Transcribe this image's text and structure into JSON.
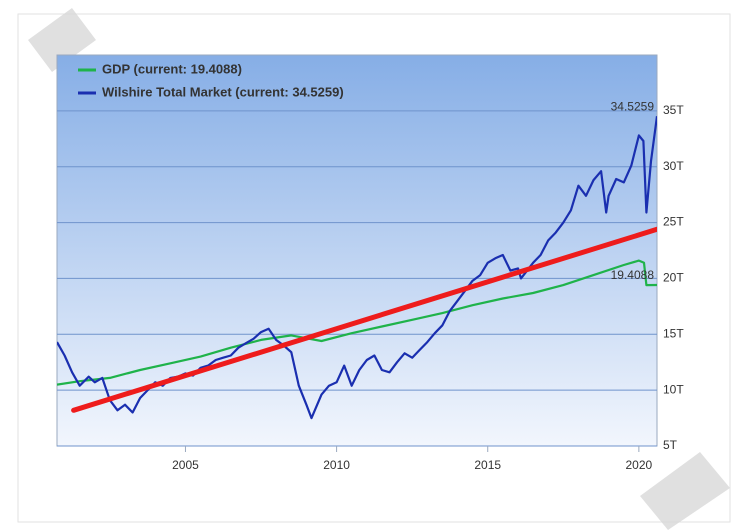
{
  "chart_data": {
    "type": "line",
    "xlim": [
      2000.75,
      2020.6
    ],
    "xticks": [
      2005,
      2010,
      2015,
      2020
    ],
    "ylim": [
      5,
      40
    ],
    "yticks": [
      {
        "value": 5,
        "label": "5T"
      },
      {
        "value": 10,
        "label": "10T"
      },
      {
        "value": 15,
        "label": "15T"
      },
      {
        "value": 20,
        "label": "20T"
      },
      {
        "value": 25,
        "label": "25T"
      },
      {
        "value": 30,
        "label": "30T"
      },
      {
        "value": 35,
        "label": "35T"
      }
    ],
    "grid": true,
    "legend": "top-left",
    "series": [
      {
        "name": "GDP (current: 19.4088)",
        "color": "#1fb34a",
        "x": [
          2000.75,
          2001.5,
          2002.5,
          2003.5,
          2004.5,
          2005.5,
          2006.5,
          2007.5,
          2008.5,
          2009.5,
          2010.5,
          2011.5,
          2012.5,
          2013.5,
          2014.5,
          2015.5,
          2016.5,
          2017.5,
          2018.5,
          2019.5,
          2020.0,
          2020.17,
          2020.25,
          2020.6
        ],
        "values": [
          10.5,
          10.8,
          11.1,
          11.8,
          12.4,
          13.0,
          13.8,
          14.5,
          14.9,
          14.4,
          15.1,
          15.7,
          16.3,
          16.9,
          17.6,
          18.2,
          18.7,
          19.4,
          20.3,
          21.2,
          21.6,
          21.4,
          19.4,
          19.4088
        ]
      },
      {
        "name": "Wilshire Total Market (current: 34.5259)",
        "color": "#1a2fb0",
        "x": [
          2000.75,
          2001.0,
          2001.25,
          2001.5,
          2001.8,
          2002.0,
          2002.25,
          2002.5,
          2002.75,
          2003.0,
          2003.25,
          2003.5,
          2003.75,
          2004.0,
          2004.25,
          2004.5,
          2004.75,
          2005.0,
          2005.25,
          2005.5,
          2005.75,
          2006.0,
          2006.25,
          2006.5,
          2006.75,
          2007.0,
          2007.25,
          2007.5,
          2007.75,
          2008.0,
          2008.25,
          2008.5,
          2008.75,
          2009.0,
          2009.17,
          2009.5,
          2009.75,
          2010.0,
          2010.25,
          2010.5,
          2010.75,
          2011.0,
          2011.25,
          2011.5,
          2011.75,
          2012.0,
          2012.25,
          2012.5,
          2012.75,
          2013.0,
          2013.25,
          2013.5,
          2013.75,
          2014.0,
          2014.25,
          2014.5,
          2014.75,
          2015.0,
          2015.25,
          2015.5,
          2015.75,
          2016.0,
          2016.1,
          2016.5,
          2016.75,
          2017.0,
          2017.25,
          2017.5,
          2017.75,
          2018.0,
          2018.25,
          2018.5,
          2018.75,
          2018.92,
          2019.0,
          2019.25,
          2019.5,
          2019.75,
          2020.0,
          2020.15,
          2020.25,
          2020.4,
          2020.6
        ],
        "values": [
          14.3,
          13.1,
          11.6,
          10.4,
          11.2,
          10.7,
          11.1,
          9.1,
          8.2,
          8.7,
          8.0,
          9.3,
          10.0,
          10.7,
          10.4,
          11.1,
          11.2,
          11.5,
          11.3,
          12.0,
          12.2,
          12.7,
          12.9,
          13.1,
          13.8,
          14.2,
          14.6,
          15.2,
          15.5,
          14.5,
          14.0,
          13.4,
          10.4,
          8.7,
          7.5,
          9.6,
          10.4,
          10.7,
          12.2,
          10.4,
          11.8,
          12.7,
          13.1,
          11.8,
          11.6,
          12.5,
          13.3,
          12.9,
          13.6,
          14.3,
          15.1,
          15.8,
          17.1,
          18.0,
          18.9,
          19.8,
          20.3,
          21.4,
          21.8,
          22.1,
          20.7,
          20.9,
          20.0,
          21.4,
          22.1,
          23.4,
          24.1,
          25.0,
          26.1,
          28.3,
          27.4,
          28.8,
          29.6,
          25.9,
          27.4,
          28.9,
          28.6,
          30.1,
          32.8,
          32.3,
          25.9,
          30.5,
          34.5259
        ]
      }
    ],
    "annotations": [
      {
        "text": "34.5259",
        "value": 34.5259
      },
      {
        "text": "19.4088",
        "value": 19.4088
      }
    ],
    "trend_line": {
      "color": "#ee1c1c",
      "x": [
        2001.3,
        2020.6
      ],
      "values": [
        8.2,
        24.4
      ]
    }
  }
}
